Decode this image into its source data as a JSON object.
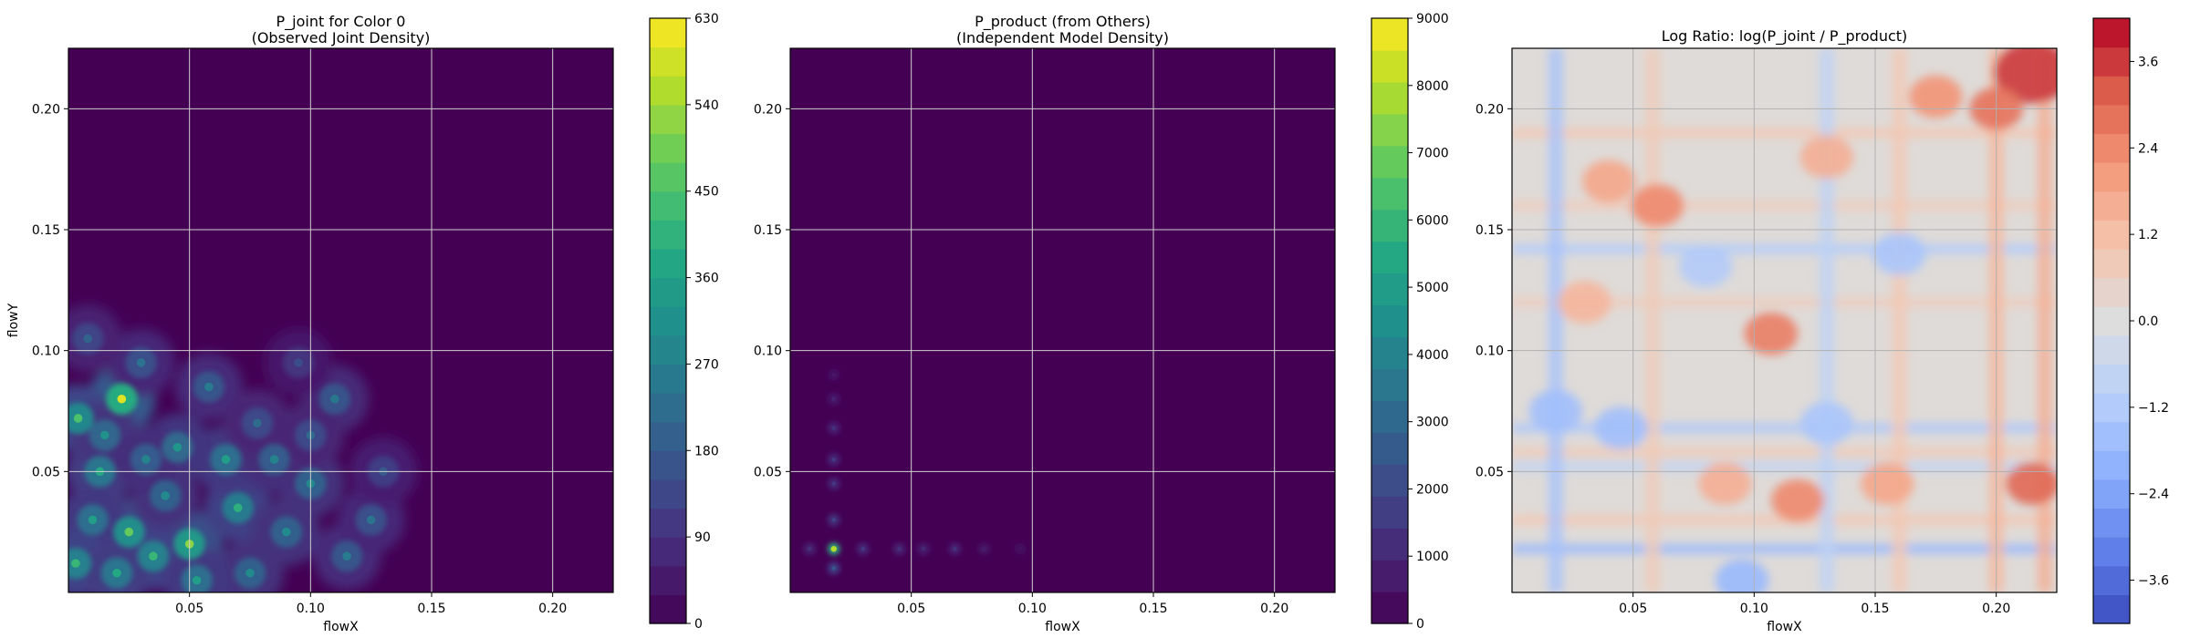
{
  "chart_data": [
    {
      "type": "heatmap",
      "title": "P_joint for Color 0\n(Observed Joint Density)",
      "xlabel": "flowX",
      "ylabel": "flowY",
      "xlim": [
        0.0,
        0.225
      ],
      "ylim": [
        0.0,
        0.225
      ],
      "xticks": [
        0.05,
        0.1,
        0.15,
        0.2
      ],
      "yticks": [
        0.05,
        0.1,
        0.15,
        0.2
      ],
      "tick_labels_x": [
        "0.05",
        "0.10",
        "0.15",
        "0.20"
      ],
      "tick_labels_y": [
        "0.05",
        "0.10",
        "0.15",
        "0.20"
      ],
      "grid": true,
      "colormap": "viridis",
      "colorbar": {
        "min": 0,
        "max": 630,
        "levels": 21,
        "ticks": [
          0,
          90,
          180,
          270,
          360,
          450,
          540,
          630
        ],
        "tick_labels": [
          "0",
          "90",
          "180",
          "270",
          "360",
          "450",
          "540",
          "630"
        ]
      },
      "pattern": "clustered density blobs concentrated for flowX < 0.14 and flowY < 0.13; peaks near 600",
      "peaks": [
        {
          "x": 0.022,
          "y": 0.08,
          "v": 600
        },
        {
          "x": 0.05,
          "y": 0.02,
          "v": 520
        },
        {
          "x": 0.004,
          "y": 0.072,
          "v": 450
        },
        {
          "x": 0.025,
          "y": 0.025,
          "v": 480
        },
        {
          "x": 0.035,
          "y": 0.015,
          "v": 420
        },
        {
          "x": 0.07,
          "y": 0.035,
          "v": 400
        },
        {
          "x": 0.013,
          "y": 0.05,
          "v": 380
        },
        {
          "x": 0.065,
          "y": 0.055,
          "v": 350
        },
        {
          "x": 0.045,
          "y": 0.06,
          "v": 330
        },
        {
          "x": 0.1,
          "y": 0.045,
          "v": 300
        },
        {
          "x": 0.09,
          "y": 0.025,
          "v": 300
        },
        {
          "x": 0.01,
          "y": 0.03,
          "v": 350
        },
        {
          "x": 0.003,
          "y": 0.012,
          "v": 420
        },
        {
          "x": 0.02,
          "y": 0.008,
          "v": 380
        },
        {
          "x": 0.11,
          "y": 0.08,
          "v": 250
        },
        {
          "x": 0.058,
          "y": 0.085,
          "v": 260
        },
        {
          "x": 0.085,
          "y": 0.055,
          "v": 280
        },
        {
          "x": 0.03,
          "y": 0.095,
          "v": 240
        },
        {
          "x": 0.115,
          "y": 0.015,
          "v": 260
        },
        {
          "x": 0.125,
          "y": 0.03,
          "v": 240
        },
        {
          "x": 0.075,
          "y": 0.008,
          "v": 300
        },
        {
          "x": 0.04,
          "y": 0.04,
          "v": 300
        },
        {
          "x": 0.008,
          "y": 0.105,
          "v": 200
        },
        {
          "x": 0.1,
          "y": 0.065,
          "v": 220
        },
        {
          "x": 0.053,
          "y": 0.005,
          "v": 350
        },
        {
          "x": 0.015,
          "y": 0.065,
          "v": 320
        },
        {
          "x": 0.032,
          "y": 0.055,
          "v": 280
        },
        {
          "x": 0.078,
          "y": 0.07,
          "v": 220
        },
        {
          "x": 0.13,
          "y": 0.05,
          "v": 180
        },
        {
          "x": 0.095,
          "y": 0.095,
          "v": 150
        }
      ]
    },
    {
      "type": "heatmap",
      "title": "P_product (from Others)\n(Independent Model Density)",
      "xlabel": "flowX",
      "ylabel": "",
      "xlim": [
        0.0,
        0.225
      ],
      "ylim": [
        0.0,
        0.225
      ],
      "xticks": [
        0.05,
        0.1,
        0.15,
        0.2
      ],
      "yticks": [
        0.05,
        0.1,
        0.15,
        0.2
      ],
      "tick_labels_x": [
        "0.05",
        "0.10",
        "0.15",
        "0.20"
      ],
      "tick_labels_y": [
        "0.05",
        "0.10",
        "0.15",
        "0.20"
      ],
      "grid": true,
      "colormap": "viridis",
      "colorbar": {
        "min": 0,
        "max": 9000,
        "levels": 19,
        "ticks": [
          0,
          1000,
          2000,
          3000,
          4000,
          5000,
          6000,
          7000,
          8000,
          9000
        ],
        "tick_labels": [
          "0",
          "1000",
          "2000",
          "3000",
          "4000",
          "5000",
          "6000",
          "7000",
          "8000",
          "9000"
        ]
      },
      "pattern": "near zero everywhere except a cross of density along flowX ≈ 0.018 and flowY ≈ 0.018; peak ≈ 8000 at (0.018, 0.018)",
      "peaks": [
        {
          "x": 0.018,
          "y": 0.018,
          "v": 8000
        },
        {
          "x": 0.018,
          "y": 0.01,
          "v": 2500
        },
        {
          "x": 0.018,
          "y": 0.03,
          "v": 1800
        },
        {
          "x": 0.018,
          "y": 0.045,
          "v": 1500
        },
        {
          "x": 0.018,
          "y": 0.055,
          "v": 1500
        },
        {
          "x": 0.018,
          "y": 0.068,
          "v": 1300
        },
        {
          "x": 0.018,
          "y": 0.08,
          "v": 900
        },
        {
          "x": 0.018,
          "y": 0.09,
          "v": 600
        },
        {
          "x": 0.008,
          "y": 0.018,
          "v": 1200
        },
        {
          "x": 0.03,
          "y": 0.018,
          "v": 1500
        },
        {
          "x": 0.045,
          "y": 0.018,
          "v": 1200
        },
        {
          "x": 0.055,
          "y": 0.018,
          "v": 1000
        },
        {
          "x": 0.068,
          "y": 0.018,
          "v": 1300
        },
        {
          "x": 0.08,
          "y": 0.018,
          "v": 700
        },
        {
          "x": 0.095,
          "y": 0.018,
          "v": 400
        }
      ]
    },
    {
      "type": "heatmap",
      "title": "Log Ratio: log(P_joint / P_product)",
      "xlabel": "flowX",
      "ylabel": "",
      "xlim": [
        0.0,
        0.225
      ],
      "ylim": [
        0.0,
        0.225
      ],
      "xticks": [
        0.05,
        0.1,
        0.15,
        0.2
      ],
      "yticks": [
        0.05,
        0.1,
        0.15,
        0.2
      ],
      "tick_labels_x": [
        "0.05",
        "0.10",
        "0.15",
        "0.20"
      ],
      "tick_labels_y": [
        "0.05",
        "0.10",
        "0.15",
        "0.20"
      ],
      "grid": true,
      "colormap": "coolwarm",
      "colorbar": {
        "min": -4.2,
        "max": 4.2,
        "levels": 21,
        "ticks": [
          -3.6,
          -2.4,
          -1.2,
          0.0,
          1.2,
          2.4,
          3.6
        ],
        "tick_labels": [
          "−3.6",
          "−2.4",
          "−1.2",
          "0.0",
          "1.2",
          "2.4",
          "3.6"
        ]
      },
      "pattern": "mostly between −1.2 and 1.2 with horizontal/vertical striping; strongest positive values (≈ 3.5) in upper-right corner; negative bands near flowY ≈ 0.02, 0.068, 0.14",
      "hotspots": [
        {
          "x": 0.215,
          "y": 0.215,
          "v": 3.6
        },
        {
          "x": 0.2,
          "y": 0.2,
          "v": 2.8
        },
        {
          "x": 0.215,
          "y": 0.045,
          "v": 3.0
        },
        {
          "x": 0.107,
          "y": 0.107,
          "v": 2.6
        },
        {
          "x": 0.06,
          "y": 0.16,
          "v": 2.4
        },
        {
          "x": 0.118,
          "y": 0.038,
          "v": 2.4
        },
        {
          "x": 0.04,
          "y": 0.17,
          "v": 1.8
        },
        {
          "x": 0.175,
          "y": 0.205,
          "v": 2.2
        },
        {
          "x": 0.155,
          "y": 0.045,
          "v": 1.8
        },
        {
          "x": 0.088,
          "y": 0.045,
          "v": 1.6
        },
        {
          "x": 0.03,
          "y": 0.12,
          "v": 1.4
        },
        {
          "x": 0.13,
          "y": 0.18,
          "v": 1.6
        },
        {
          "x": 0.018,
          "y": 0.075,
          "v": -1.6
        },
        {
          "x": 0.16,
          "y": 0.14,
          "v": -1.4
        },
        {
          "x": 0.08,
          "y": 0.135,
          "v": -1.2
        },
        {
          "x": 0.13,
          "y": 0.07,
          "v": -1.4
        },
        {
          "x": 0.045,
          "y": 0.068,
          "v": -1.6
        },
        {
          "x": 0.095,
          "y": 0.005,
          "v": -1.8
        }
      ],
      "bands_y": [
        {
          "y": 0.018,
          "v": -1.8
        },
        {
          "y": 0.068,
          "v": -1.3
        },
        {
          "y": 0.142,
          "v": -1.2
        },
        {
          "y": 0.052,
          "v": -0.8
        },
        {
          "y": 0.03,
          "v": 0.9
        },
        {
          "y": 0.058,
          "v": 0.8
        },
        {
          "y": 0.12,
          "v": 0.7
        },
        {
          "y": 0.19,
          "v": 0.9
        },
        {
          "y": 0.16,
          "v": 0.7
        }
      ],
      "bands_x": [
        {
          "x": 0.018,
          "v": -1.5
        },
        {
          "x": 0.13,
          "v": -0.9
        },
        {
          "x": 0.058,
          "v": 0.8
        },
        {
          "x": 0.16,
          "v": 0.9
        },
        {
          "x": 0.2,
          "v": 1.4
        },
        {
          "x": 0.22,
          "v": 1.6
        }
      ]
    }
  ]
}
